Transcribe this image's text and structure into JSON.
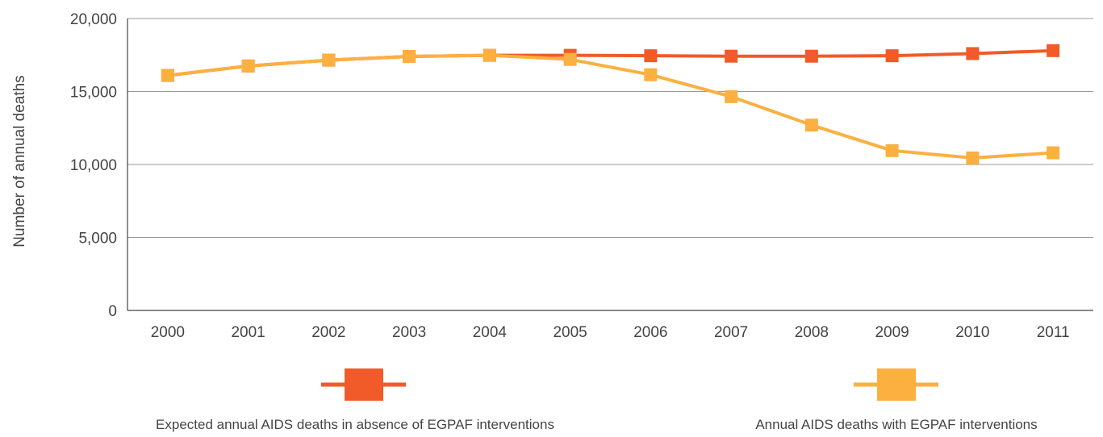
{
  "chart_data": {
    "type": "line",
    "title": "",
    "xlabel": "",
    "ylabel": "Number of annual deaths",
    "ylim": [
      0,
      20000
    ],
    "y_ticks": [
      "0",
      "5,000",
      "10,000",
      "15,000",
      "20,000"
    ],
    "y_tick_values": [
      0,
      5000,
      10000,
      15000,
      20000
    ],
    "categories": [
      "2000",
      "2001",
      "2002",
      "2003",
      "2004",
      "2005",
      "2006",
      "2007",
      "2008",
      "2009",
      "2010",
      "2011"
    ],
    "grid": true,
    "legend_position": "bottom",
    "series": [
      {
        "name": "Expected annual AIDS deaths in absence of EGPAF interventions",
        "color": "#f15a29",
        "marker": "square",
        "values": [
          16100,
          16750,
          17150,
          17400,
          17480,
          17480,
          17450,
          17420,
          17420,
          17450,
          17600,
          17800
        ]
      },
      {
        "name": "Annual AIDS deaths with EGPAF interventions",
        "color": "#fbb040",
        "marker": "square",
        "values": [
          16100,
          16750,
          17150,
          17400,
          17480,
          17200,
          16150,
          14650,
          12700,
          10950,
          10450,
          10800
        ]
      }
    ]
  }
}
